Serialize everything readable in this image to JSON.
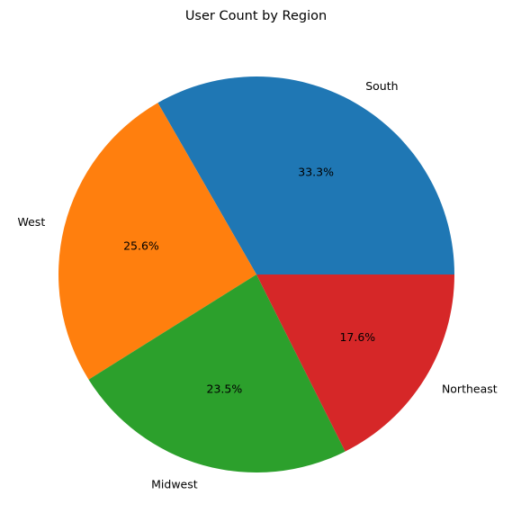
{
  "chart_data": {
    "type": "pie",
    "title": "User Count by Region",
    "categories": [
      "South",
      "West",
      "Midwest",
      "Northeast"
    ],
    "values": [
      33.3,
      25.6,
      23.5,
      17.6
    ],
    "percent_labels": [
      "33.3%",
      "25.6%",
      "23.5%",
      "17.6%"
    ],
    "colors": [
      "#1f77b4",
      "#ff7f0e",
      "#2ca02c",
      "#d62728"
    ],
    "start_angle_deg": 0,
    "direction": "counterclockwise",
    "legend": "none"
  }
}
